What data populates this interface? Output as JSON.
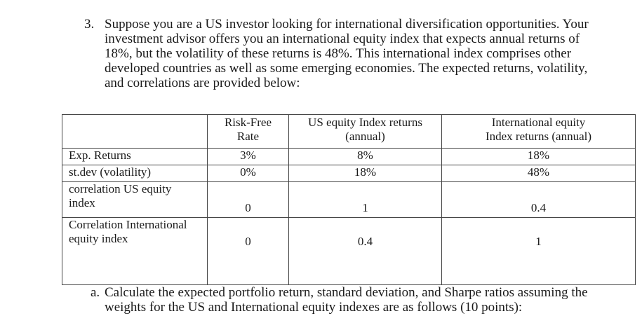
{
  "question": {
    "number": "3.",
    "lines": [
      "Suppose you are a US investor looking for international diversification opportunities. Your",
      "investment advisor offers you an international equity index that expects annual returns of",
      "18%, but the volatility of these returns is 48%.  This international index comprises other",
      "developed countries as well as some emerging economies.  The expected returns, volatility,",
      "and correlations are provided below:"
    ]
  },
  "table": {
    "headers": {
      "label": "",
      "risk_free_line1": "Risk-Free",
      "risk_free_line2": "Rate",
      "us_line1": "US equity Index returns",
      "us_line2": "(annual)",
      "intl_line1": "International equity",
      "intl_line2": "Index returns (annual)"
    },
    "rows": [
      {
        "label_line1": "Exp. Returns",
        "label_line2": "",
        "risk_free": "3%",
        "us": "8%",
        "intl": "18%"
      },
      {
        "label_line1": "st.dev (volatility)",
        "label_line2": "",
        "risk_free": "0%",
        "us": "18%",
        "intl": "48%"
      },
      {
        "label_line1": "correlation US equity",
        "label_line2": "index",
        "risk_free": "0",
        "us": "1",
        "intl": "0.4"
      },
      {
        "label_line1": "Correlation International",
        "label_line2": "equity index",
        "risk_free": "0",
        "us": "0.4",
        "intl": "1"
      }
    ]
  },
  "subquestion": {
    "letter": "a.",
    "lines": [
      "Calculate the expected portfolio return, standard deviation, and Sharpe ratios assuming the",
      "weights for the US and International equity indexes are as follows (10 points):"
    ]
  }
}
